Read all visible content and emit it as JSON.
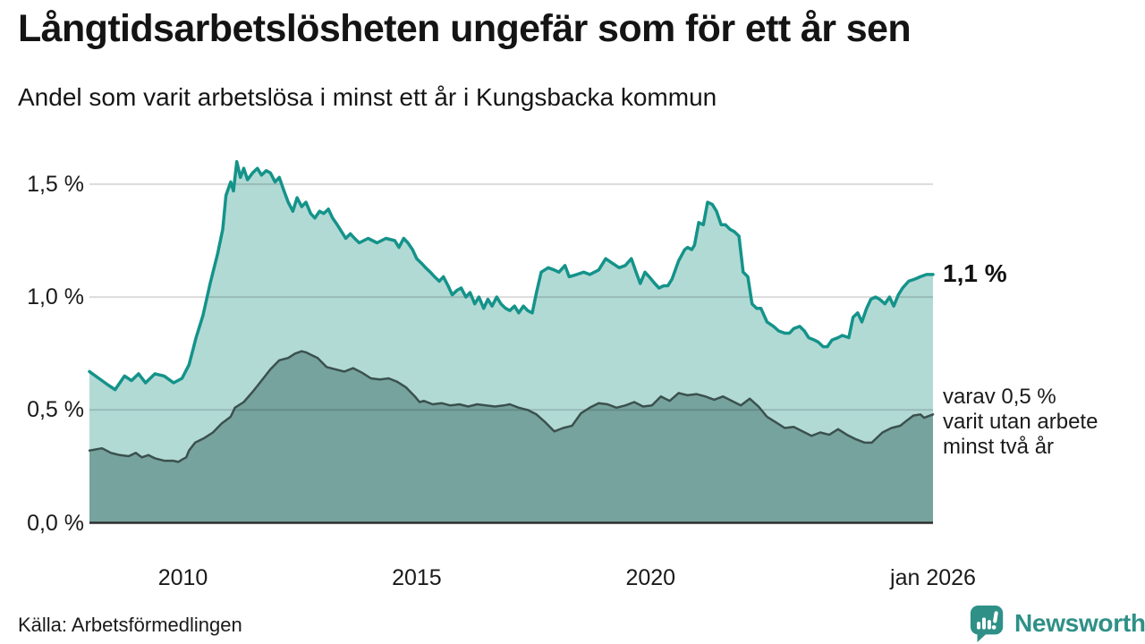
{
  "header": {
    "title": "Långtidsarbetslösheten ungefär som för ett år sen",
    "subtitle": "Andel som varit arbetslösa i minst ett år i Kungsbacka kommun"
  },
  "footer": {
    "source": "Källa: Arbetsförmedlingen",
    "brand": "Newsworthy"
  },
  "colors": {
    "text": "#161616",
    "brand_teal": "#2e9087",
    "gridline": "rgba(0,0,0,0.14)",
    "axis_line": "#2e2e2e"
  },
  "chart_data": {
    "type": "area",
    "title": "Långtidsarbetslösheten ungefär som för ett år sen",
    "subtitle": "Andel som varit arbetslösa i minst ett år i Kungsbacka kommun",
    "grid": true,
    "legend_position": "none",
    "x_axis": {
      "range": [
        2008.0,
        2026.04
      ],
      "ticks": [
        {
          "label": "2010",
          "value": 2010
        },
        {
          "label": "2015",
          "value": 2015
        },
        {
          "label": "2020",
          "value": 2020
        },
        {
          "label": "jan 2026",
          "value": 2026.04
        }
      ]
    },
    "y_axis": {
      "range": [
        0,
        1.5
      ],
      "unit": "%",
      "ticks": [
        {
          "label": "1,5 %",
          "value": 1.5
        },
        {
          "label": "1,0 %",
          "value": 1.0
        },
        {
          "label": "0,5 %",
          "value": 0.5
        },
        {
          "label": "0,0 %",
          "value": 0.0
        }
      ]
    },
    "annotations": {
      "primary_end_label": "1,1 %",
      "secondary_end_label_lines": [
        "varav 0,5 %",
        "varit utan arbete",
        "minst två år"
      ]
    },
    "series": [
      {
        "name": "Arbetslösa minst ett år",
        "line_color": "#14938a",
        "fill_color": "#b2dad5",
        "line_width": 3.5,
        "end_value_label": "1,1 %",
        "points": [
          [
            2008.0,
            0.67
          ],
          [
            2008.2,
            0.64
          ],
          [
            2008.4,
            0.61
          ],
          [
            2008.55,
            0.59
          ],
          [
            2008.75,
            0.65
          ],
          [
            2008.9,
            0.63
          ],
          [
            2009.05,
            0.66
          ],
          [
            2009.2,
            0.62
          ],
          [
            2009.4,
            0.66
          ],
          [
            2009.6,
            0.65
          ],
          [
            2009.8,
            0.62
          ],
          [
            2009.98,
            0.64
          ],
          [
            2010.13,
            0.7
          ],
          [
            2010.28,
            0.82
          ],
          [
            2010.43,
            0.92
          ],
          [
            2010.58,
            1.06
          ],
          [
            2010.74,
            1.19
          ],
          [
            2010.85,
            1.3
          ],
          [
            2010.92,
            1.45
          ],
          [
            2011.02,
            1.51
          ],
          [
            2011.08,
            1.47
          ],
          [
            2011.15,
            1.6
          ],
          [
            2011.23,
            1.53
          ],
          [
            2011.3,
            1.57
          ],
          [
            2011.38,
            1.52
          ],
          [
            2011.49,
            1.55
          ],
          [
            2011.59,
            1.57
          ],
          [
            2011.68,
            1.54
          ],
          [
            2011.78,
            1.56
          ],
          [
            2011.87,
            1.55
          ],
          [
            2011.97,
            1.51
          ],
          [
            2012.06,
            1.53
          ],
          [
            2012.16,
            1.47
          ],
          [
            2012.25,
            1.42
          ],
          [
            2012.35,
            1.38
          ],
          [
            2012.44,
            1.44
          ],
          [
            2012.54,
            1.4
          ],
          [
            2012.63,
            1.42
          ],
          [
            2012.73,
            1.37
          ],
          [
            2012.82,
            1.35
          ],
          [
            2012.92,
            1.38
          ],
          [
            2013.01,
            1.37
          ],
          [
            2013.11,
            1.39
          ],
          [
            2013.2,
            1.35
          ],
          [
            2013.3,
            1.32
          ],
          [
            2013.39,
            1.29
          ],
          [
            2013.48,
            1.26
          ],
          [
            2013.58,
            1.28
          ],
          [
            2013.67,
            1.26
          ],
          [
            2013.77,
            1.24
          ],
          [
            2013.96,
            1.26
          ],
          [
            2014.15,
            1.24
          ],
          [
            2014.34,
            1.26
          ],
          [
            2014.53,
            1.25
          ],
          [
            2014.62,
            1.22
          ],
          [
            2014.72,
            1.26
          ],
          [
            2014.81,
            1.24
          ],
          [
            2014.91,
            1.21
          ],
          [
            2015.0,
            1.17
          ],
          [
            2015.1,
            1.15
          ],
          [
            2015.19,
            1.13
          ],
          [
            2015.29,
            1.11
          ],
          [
            2015.38,
            1.09
          ],
          [
            2015.48,
            1.07
          ],
          [
            2015.57,
            1.09
          ],
          [
            2015.67,
            1.05
          ],
          [
            2015.76,
            1.01
          ],
          [
            2015.86,
            1.03
          ],
          [
            2015.95,
            1.04
          ],
          [
            2016.05,
            1.0
          ],
          [
            2016.14,
            1.02
          ],
          [
            2016.24,
            0.97
          ],
          [
            2016.33,
            1.0
          ],
          [
            2016.43,
            0.95
          ],
          [
            2016.52,
            0.99
          ],
          [
            2016.61,
            0.96
          ],
          [
            2016.71,
            1.0
          ],
          [
            2016.8,
            0.97
          ],
          [
            2016.9,
            0.95
          ],
          [
            2016.99,
            0.94
          ],
          [
            2017.09,
            0.96
          ],
          [
            2017.18,
            0.93
          ],
          [
            2017.28,
            0.96
          ],
          [
            2017.37,
            0.94
          ],
          [
            2017.47,
            0.93
          ],
          [
            2017.56,
            1.02
          ],
          [
            2017.66,
            1.11
          ],
          [
            2017.81,
            1.13
          ],
          [
            2017.94,
            1.12
          ],
          [
            2018.04,
            1.11
          ],
          [
            2018.17,
            1.14
          ],
          [
            2018.26,
            1.09
          ],
          [
            2018.42,
            1.1
          ],
          [
            2018.57,
            1.11
          ],
          [
            2018.7,
            1.1
          ],
          [
            2018.89,
            1.12
          ],
          [
            2019.04,
            1.17
          ],
          [
            2019.18,
            1.15
          ],
          [
            2019.33,
            1.13
          ],
          [
            2019.46,
            1.14
          ],
          [
            2019.59,
            1.17
          ],
          [
            2019.69,
            1.11
          ],
          [
            2019.78,
            1.06
          ],
          [
            2019.88,
            1.11
          ],
          [
            2019.97,
            1.09
          ],
          [
            2020.09,
            1.06
          ],
          [
            2020.18,
            1.04
          ],
          [
            2020.28,
            1.05
          ],
          [
            2020.37,
            1.05
          ],
          [
            2020.46,
            1.08
          ],
          [
            2020.6,
            1.16
          ],
          [
            2020.73,
            1.21
          ],
          [
            2020.79,
            1.22
          ],
          [
            2020.88,
            1.21
          ],
          [
            2020.94,
            1.23
          ],
          [
            2021.03,
            1.33
          ],
          [
            2021.13,
            1.32
          ],
          [
            2021.22,
            1.42
          ],
          [
            2021.32,
            1.41
          ],
          [
            2021.41,
            1.38
          ],
          [
            2021.51,
            1.32
          ],
          [
            2021.6,
            1.32
          ],
          [
            2021.7,
            1.3
          ],
          [
            2021.79,
            1.29
          ],
          [
            2021.89,
            1.27
          ],
          [
            2021.98,
            1.11
          ],
          [
            2022.08,
            1.09
          ],
          [
            2022.17,
            0.97
          ],
          [
            2022.27,
            0.95
          ],
          [
            2022.36,
            0.95
          ],
          [
            2022.49,
            0.89
          ],
          [
            2022.63,
            0.87
          ],
          [
            2022.74,
            0.85
          ],
          [
            2022.87,
            0.84
          ],
          [
            2022.97,
            0.84
          ],
          [
            2023.06,
            0.86
          ],
          [
            2023.19,
            0.87
          ],
          [
            2023.29,
            0.85
          ],
          [
            2023.38,
            0.82
          ],
          [
            2023.5,
            0.81
          ],
          [
            2023.59,
            0.8
          ],
          [
            2023.69,
            0.78
          ],
          [
            2023.78,
            0.78
          ],
          [
            2023.88,
            0.81
          ],
          [
            2024.01,
            0.82
          ],
          [
            2024.1,
            0.83
          ],
          [
            2024.24,
            0.82
          ],
          [
            2024.33,
            0.91
          ],
          [
            2024.43,
            0.93
          ],
          [
            2024.52,
            0.89
          ],
          [
            2024.62,
            0.95
          ],
          [
            2024.71,
            0.99
          ],
          [
            2024.81,
            1.0
          ],
          [
            2024.9,
            0.99
          ],
          [
            2025.01,
            0.97
          ],
          [
            2025.11,
            1.0
          ],
          [
            2025.2,
            0.96
          ],
          [
            2025.3,
            1.01
          ],
          [
            2025.39,
            1.04
          ],
          [
            2025.52,
            1.07
          ],
          [
            2025.66,
            1.08
          ],
          [
            2025.77,
            1.09
          ],
          [
            2025.9,
            1.1
          ],
          [
            2026.04,
            1.1
          ]
        ]
      },
      {
        "name": "Varit utan arbete minst två år",
        "line_color": "#3b514e",
        "fill_color": "#76a39e",
        "line_width": 2.5,
        "end_value_label": "varav 0,5 %",
        "points": [
          [
            2008.0,
            0.32
          ],
          [
            2008.27,
            0.33
          ],
          [
            2008.46,
            0.31
          ],
          [
            2008.65,
            0.3
          ],
          [
            2008.84,
            0.295
          ],
          [
            2008.99,
            0.31
          ],
          [
            2009.12,
            0.29
          ],
          [
            2009.26,
            0.3
          ],
          [
            2009.41,
            0.285
          ],
          [
            2009.6,
            0.275
          ],
          [
            2009.79,
            0.275
          ],
          [
            2009.9,
            0.27
          ],
          [
            2009.98,
            0.28
          ],
          [
            2010.07,
            0.29
          ],
          [
            2010.13,
            0.32
          ],
          [
            2010.26,
            0.355
          ],
          [
            2010.45,
            0.375
          ],
          [
            2010.64,
            0.4
          ],
          [
            2010.83,
            0.44
          ],
          [
            2011.02,
            0.47
          ],
          [
            2011.11,
            0.51
          ],
          [
            2011.3,
            0.535
          ],
          [
            2011.49,
            0.58
          ],
          [
            2011.68,
            0.63
          ],
          [
            2011.87,
            0.68
          ],
          [
            2012.06,
            0.72
          ],
          [
            2012.25,
            0.73
          ],
          [
            2012.4,
            0.75
          ],
          [
            2012.54,
            0.76
          ],
          [
            2012.63,
            0.755
          ],
          [
            2012.73,
            0.745
          ],
          [
            2012.88,
            0.73
          ],
          [
            2013.07,
            0.69
          ],
          [
            2013.26,
            0.68
          ],
          [
            2013.45,
            0.67
          ],
          [
            2013.64,
            0.685
          ],
          [
            2013.83,
            0.665
          ],
          [
            2014.02,
            0.64
          ],
          [
            2014.21,
            0.635
          ],
          [
            2014.4,
            0.64
          ],
          [
            2014.58,
            0.625
          ],
          [
            2014.77,
            0.6
          ],
          [
            2014.96,
            0.56
          ],
          [
            2015.06,
            0.535
          ],
          [
            2015.15,
            0.54
          ],
          [
            2015.34,
            0.525
          ],
          [
            2015.53,
            0.53
          ],
          [
            2015.72,
            0.52
          ],
          [
            2015.91,
            0.525
          ],
          [
            2016.1,
            0.515
          ],
          [
            2016.29,
            0.525
          ],
          [
            2016.48,
            0.52
          ],
          [
            2016.67,
            0.515
          ],
          [
            2016.86,
            0.52
          ],
          [
            2016.99,
            0.525
          ],
          [
            2017.18,
            0.51
          ],
          [
            2017.37,
            0.5
          ],
          [
            2017.56,
            0.48
          ],
          [
            2017.75,
            0.445
          ],
          [
            2017.94,
            0.405
          ],
          [
            2018.13,
            0.42
          ],
          [
            2018.32,
            0.43
          ],
          [
            2018.51,
            0.485
          ],
          [
            2018.7,
            0.51
          ],
          [
            2018.89,
            0.53
          ],
          [
            2019.08,
            0.525
          ],
          [
            2019.27,
            0.51
          ],
          [
            2019.46,
            0.52
          ],
          [
            2019.65,
            0.535
          ],
          [
            2019.84,
            0.515
          ],
          [
            2020.03,
            0.52
          ],
          [
            2020.22,
            0.56
          ],
          [
            2020.41,
            0.54
          ],
          [
            2020.6,
            0.575
          ],
          [
            2020.79,
            0.565
          ],
          [
            2020.98,
            0.57
          ],
          [
            2021.17,
            0.56
          ],
          [
            2021.36,
            0.545
          ],
          [
            2021.55,
            0.56
          ],
          [
            2021.74,
            0.54
          ],
          [
            2021.93,
            0.52
          ],
          [
            2022.12,
            0.55
          ],
          [
            2022.31,
            0.515
          ],
          [
            2022.49,
            0.47
          ],
          [
            2022.68,
            0.445
          ],
          [
            2022.87,
            0.42
          ],
          [
            2023.06,
            0.425
          ],
          [
            2023.25,
            0.405
          ],
          [
            2023.44,
            0.385
          ],
          [
            2023.63,
            0.4
          ],
          [
            2023.82,
            0.39
          ],
          [
            2024.01,
            0.415
          ],
          [
            2024.2,
            0.39
          ],
          [
            2024.39,
            0.37
          ],
          [
            2024.58,
            0.355
          ],
          [
            2024.73,
            0.355
          ],
          [
            2024.96,
            0.4
          ],
          [
            2025.15,
            0.42
          ],
          [
            2025.34,
            0.43
          ],
          [
            2025.49,
            0.455
          ],
          [
            2025.62,
            0.475
          ],
          [
            2025.77,
            0.48
          ],
          [
            2025.85,
            0.465
          ],
          [
            2026.04,
            0.48
          ]
        ]
      }
    ]
  }
}
